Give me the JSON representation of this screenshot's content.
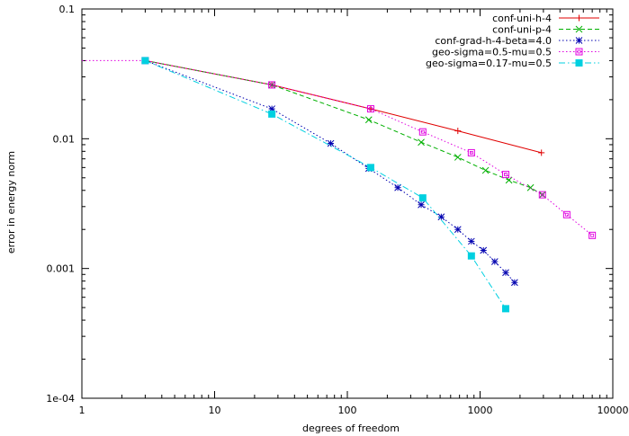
{
  "chart_data": {
    "type": "line",
    "xlabel": "degrees of freedom",
    "ylabel": "error in energy norm",
    "xscale": "log",
    "yscale": "log",
    "xlim": [
      1,
      10000
    ],
    "ylim": [
      0.0001,
      0.1
    ],
    "x_tick_labels": [
      "1",
      "10",
      "100",
      "1000",
      "10000"
    ],
    "y_tick_labels": [
      "1e-04",
      "0.001",
      "0.01",
      "0.1"
    ],
    "grid": false,
    "legend_position": "top-right",
    "series": [
      {
        "name": "conf-uni-h-4",
        "color": "#e00000",
        "marker": "plus",
        "dash": "solid",
        "x": [
          3,
          27,
          150,
          680,
          2900
        ],
        "y": [
          0.04,
          0.026,
          0.017,
          0.0115,
          0.0078
        ]
      },
      {
        "name": "conf-uni-p-4",
        "color": "#00b000",
        "marker": "cross",
        "dash": "dashed",
        "x": [
          3,
          27,
          145,
          360,
          680,
          1100,
          1650,
          2400,
          2950
        ],
        "y": [
          0.04,
          0.026,
          0.014,
          0.0094,
          0.0072,
          0.0057,
          0.0048,
          0.0042,
          0.0037
        ]
      },
      {
        "name": "conf-grad-h-4-beta=4.0",
        "color": "#0000b0",
        "marker": "star",
        "dash": "dotted",
        "x": [
          3,
          27,
          75,
          145,
          240,
          360,
          510,
          680,
          860,
          1060,
          1290,
          1560,
          1820
        ],
        "y": [
          0.04,
          0.017,
          0.0092,
          0.0059,
          0.0042,
          0.0031,
          0.0025,
          0.002,
          0.00162,
          0.00138,
          0.00113,
          0.00093,
          0.00078
        ]
      },
      {
        "name": "geo-sigma=0.5-mu=0.5",
        "color": "#e000e0",
        "marker": "box",
        "dash": "dotted",
        "x": [
          1,
          3,
          27,
          150,
          370,
          860,
          1560,
          2950,
          4500,
          7000
        ],
        "y": [
          0.04,
          0.04,
          0.026,
          0.017,
          0.0113,
          0.0078,
          0.0053,
          0.0037,
          0.0026,
          0.0018
        ]
      },
      {
        "name": "geo-sigma=0.17-mu=0.5",
        "color": "#00d0e0",
        "marker": "filled-box",
        "dash": "dashdot",
        "x": [
          3,
          27,
          150,
          370,
          860,
          1560
        ],
        "y": [
          0.04,
          0.0155,
          0.006,
          0.0035,
          0.00125,
          0.00049
        ]
      }
    ]
  }
}
